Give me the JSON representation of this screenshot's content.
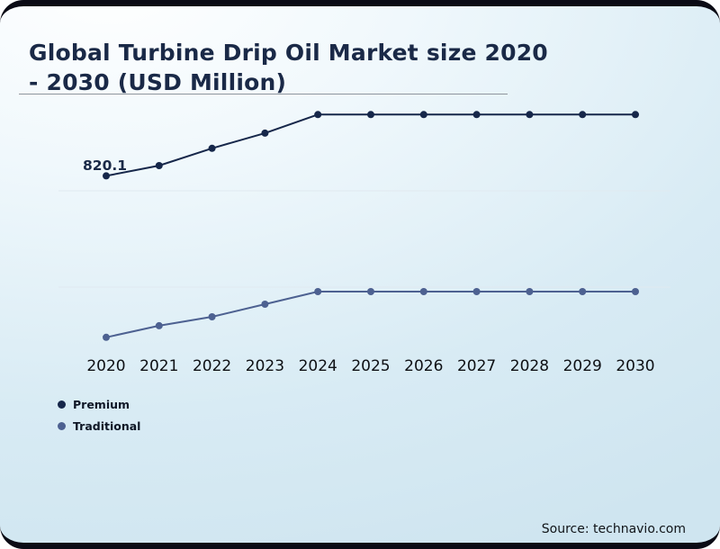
{
  "title": {
    "line1": "Global Turbine Drip Oil Market size 2020",
    "line2": "- 2030 (USD Million)"
  },
  "source": "Source: technavio.com",
  "legend": [
    {
      "label": "Premium",
      "color": "#16274a"
    },
    {
      "label": "Traditional",
      "color": "#4d6191"
    }
  ],
  "chart_data": {
    "type": "line",
    "title": "Global Turbine Drip Oil Market size 2020 - 2030 (USD Million)",
    "x": [
      2020,
      2021,
      2022,
      2023,
      2024,
      2025,
      2026,
      2027,
      2028,
      2029,
      2030
    ],
    "series": [
      {
        "name": "Premium",
        "color": "#16274a",
        "values": [
          820.1,
          851,
          903,
          949,
          1005,
          1005,
          1005,
          1005,
          1005,
          1005,
          1005
        ]
      },
      {
        "name": "Traditional",
        "color": "#4d6191",
        "values": [
          333,
          368,
          395,
          433,
          471,
          471,
          471,
          471,
          471,
          471,
          471
        ]
      }
    ],
    "xlabel": "",
    "ylabel": "",
    "ylim": [
      300,
      1060
    ],
    "grid": "faint-horizontal",
    "legend_position": "bottom-left",
    "annotations": [
      {
        "series": "Premium",
        "x": 2020,
        "text": "820.1"
      }
    ]
  }
}
